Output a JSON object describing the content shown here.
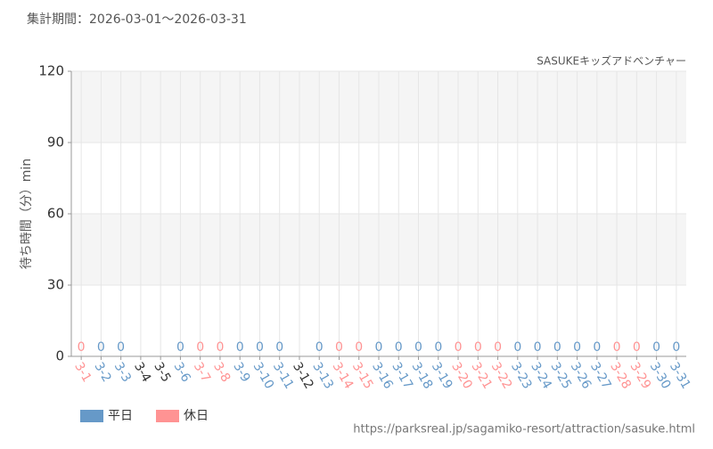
{
  "chart_data": {
    "type": "bar",
    "title": "集計期間：2026-03-01～2026-03-31",
    "subtitle": "SASUKEキッズアドベンチャー",
    "y_label": "待ち時間（分）min",
    "source": "https://parksreal.jp/sagamiko-resort/attraction/sasuke.html",
    "categories": [
      "3-1",
      "3-2",
      "3-3",
      "3-4",
      "3-5",
      "3-6",
      "3-7",
      "3-8",
      "3-9",
      "3-10",
      "3-11",
      "3-12",
      "3-13",
      "3-14",
      "3-15",
      "3-16",
      "3-17",
      "3-18",
      "3-19",
      "3-20",
      "3-21",
      "3-22",
      "3-23",
      "3-24",
      "3-25",
      "3-26",
      "3-27",
      "3-28",
      "3-29",
      "3-30",
      "3-31"
    ],
    "series": [
      {
        "name": "平日",
        "color": "#6699c8",
        "values": [
          null,
          0,
          0,
          null,
          null,
          0,
          null,
          null,
          0,
          0,
          0,
          null,
          0,
          null,
          null,
          0,
          0,
          0,
          0,
          null,
          null,
          null,
          0,
          0,
          0,
          0,
          0,
          null,
          null,
          0,
          0
        ]
      },
      {
        "name": "休日",
        "color": "#ff9393",
        "values": [
          0,
          null,
          null,
          null,
          null,
          null,
          0,
          0,
          null,
          null,
          null,
          null,
          null,
          0,
          0,
          null,
          null,
          null,
          null,
          0,
          0,
          0,
          null,
          null,
          null,
          null,
          null,
          0,
          0,
          null,
          null
        ]
      }
    ],
    "ylim": [
      0,
      120
    ],
    "yticks": [
      0,
      30,
      60,
      90,
      120
    ],
    "grid": true,
    "legend": "bottom-left"
  }
}
